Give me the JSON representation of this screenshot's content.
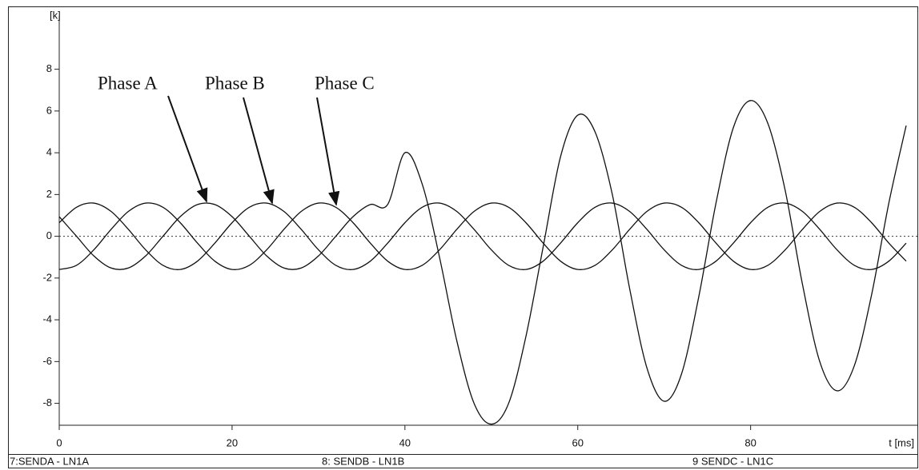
{
  "chart_data": {
    "type": "line",
    "y_unit_label": "[k]",
    "x_label": "t [ms]",
    "annotations": [
      "Phase A",
      "Phase B",
      "Phase C"
    ],
    "x": [
      0,
      2,
      4,
      6,
      8,
      10,
      12,
      14,
      16,
      18,
      20,
      22,
      24,
      26,
      28,
      30,
      32,
      34,
      36,
      38,
      40,
      42,
      44,
      46,
      48,
      50,
      52,
      54,
      56,
      58,
      60,
      62,
      64,
      66,
      68,
      70,
      72,
      74,
      76,
      78,
      80,
      82,
      84,
      86,
      88,
      90,
      92,
      94,
      96,
      98
    ],
    "series": [
      {
        "name": "7:SENDA - LN1A",
        "color": "#111111",
        "values": [
          0.94,
          0,
          -0.94,
          -1.52,
          -1.52,
          -0.94,
          0,
          0.94,
          1.52,
          1.52,
          0.94,
          0,
          -0.94,
          -1.52,
          -1.52,
          -0.94,
          0,
          0.94,
          1.52,
          1.52,
          4.0,
          2.5,
          -1.0,
          -5.0,
          -8.0,
          -9.0,
          -8.0,
          -4.8,
          -0.5,
          3.8,
          5.8,
          5.0,
          2.0,
          -2.5,
          -6.3,
          -7.9,
          -6.6,
          -2.9,
          1.6,
          5.2,
          6.5,
          5.4,
          2.2,
          -2.3,
          -6.0,
          -7.4,
          -6.2,
          -2.8,
          1.6,
          5.3
        ]
      },
      {
        "name": "8: SENDB - LN1B",
        "color": "#111111",
        "values": [
          0.65,
          1.39,
          1.59,
          1.19,
          0.33,
          -0.65,
          -1.39,
          -1.59,
          -1.19,
          -0.33,
          0.65,
          1.39,
          1.59,
          1.19,
          0.33,
          -0.65,
          -1.39,
          -1.59,
          -1.19,
          -0.33,
          0.65,
          1.39,
          1.59,
          1.19,
          0.33,
          -0.65,
          -1.39,
          -1.59,
          -1.19,
          -0.33,
          0.65,
          1.39,
          1.59,
          1.19,
          0.33,
          -0.65,
          -1.39,
          -1.59,
          -1.19,
          -0.33,
          0.65,
          1.39,
          1.59,
          1.19,
          0.33,
          -0.65,
          -1.39,
          -1.59,
          -1.19,
          -0.33
        ]
      },
      {
        "name": "9 SENDC - LN1C",
        "color": "#111111",
        "values": [
          -1.59,
          -1.39,
          -0.65,
          0.33,
          1.19,
          1.59,
          1.39,
          0.65,
          -0.33,
          -1.19,
          -1.59,
          -1.39,
          -0.65,
          0.33,
          1.19,
          1.59,
          1.39,
          0.65,
          -0.33,
          -1.19,
          -1.59,
          -1.39,
          -0.65,
          0.33,
          1.19,
          1.59,
          1.39,
          0.65,
          -0.33,
          -1.19,
          -1.59,
          -1.39,
          -0.65,
          0.33,
          1.19,
          1.59,
          1.39,
          0.65,
          -0.33,
          -1.19,
          -1.59,
          -1.39,
          -0.65,
          0.33,
          1.19,
          1.59,
          1.39,
          0.65,
          -0.33,
          -1.19
        ]
      }
    ],
    "xlim": [
      0,
      99.3
    ],
    "ylim": [
      -9.05,
      10.55
    ],
    "xticks": [
      0,
      20,
      40,
      60,
      80
    ],
    "yticks": [
      -8,
      -6,
      -4,
      -2,
      0,
      2,
      4,
      6,
      8
    ],
    "zero_line": true,
    "grid": false
  }
}
